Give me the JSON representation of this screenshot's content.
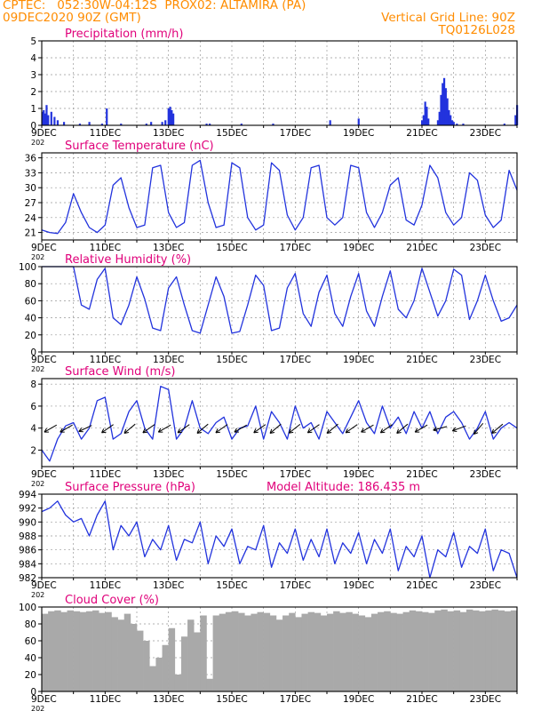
{
  "header": {
    "line1_left": "CPTEC:   052:30W-04:12S  PROX02: ALTAMIRA (PA)",
    "line2_left": "09DEC2020 90Z (GMT)",
    "line2_right": "Vertical Grid Line: 90Z",
    "line3_right": "TQ0126L028"
  },
  "colors": {
    "header": "#ff8c00",
    "title": "#e0007a",
    "line": "#2233dd",
    "bars": "#2233dd",
    "cloud": "#a9a9a9",
    "arrows": "#000000",
    "grid": "#999999"
  },
  "x_axis": {
    "days": [
      9,
      10,
      11,
      12,
      13,
      14,
      15,
      16,
      17,
      18,
      19,
      20,
      21,
      22,
      23,
      24
    ],
    "tick_labels": [
      "9DEC",
      "11DEC",
      "13DEC",
      "15DEC",
      "17DEC",
      "19DEC",
      "21DEC",
      "23DEC"
    ],
    "tick_days": [
      9,
      11,
      13,
      15,
      17,
      19,
      21,
      23
    ],
    "stub_label": "202"
  },
  "chart_data": [
    {
      "id": "precip",
      "type": "bar",
      "title": "Precipitation (mm/h)",
      "ylim": [
        0,
        5
      ],
      "yticks": [
        0,
        1,
        2,
        3,
        4,
        5
      ],
      "x": [
        9.02,
        9.06,
        9.1,
        9.15,
        9.2,
        9.3,
        9.4,
        9.5,
        9.7,
        10.2,
        10.5,
        10.9,
        11.05,
        11.5,
        12.3,
        12.45,
        12.8,
        12.9,
        13.0,
        13.05,
        13.1,
        13.15,
        14.2,
        14.3,
        15.3,
        16.3,
        18.1,
        19.0,
        21.0,
        21.05,
        21.1,
        21.15,
        21.2,
        21.5,
        21.55,
        21.6,
        21.65,
        21.7,
        21.75,
        21.8,
        21.85,
        21.9,
        21.95,
        22.0,
        22.1,
        22.3,
        23.6,
        23.95,
        24.0
      ],
      "values": [
        0.8,
        0.9,
        0.7,
        1.2,
        0.6,
        0.8,
        0.5,
        0.3,
        0.2,
        0.1,
        0.2,
        0.1,
        1.0,
        0.1,
        0.1,
        0.2,
        0.2,
        0.3,
        1.0,
        1.1,
        0.9,
        0.7,
        0.1,
        0.1,
        0.1,
        0.1,
        0.3,
        0.4,
        0.3,
        0.6,
        1.4,
        1.1,
        0.4,
        0.3,
        0.8,
        1.8,
        2.5,
        2.8,
        2.2,
        1.6,
        0.9,
        0.6,
        0.3,
        0.2,
        0.1,
        0.1,
        0.1,
        0.6,
        1.2
      ]
    },
    {
      "id": "temp",
      "type": "line",
      "title": "Surface Temperature (nC)",
      "ylim": [
        19.5,
        37
      ],
      "yticks": [
        21,
        24,
        27,
        30,
        33,
        36
      ],
      "x": [
        9.0,
        9.25,
        9.5,
        9.75,
        10.0,
        10.25,
        10.5,
        10.75,
        11.0,
        11.25,
        11.5,
        11.75,
        12.0,
        12.25,
        12.5,
        12.75,
        13.0,
        13.25,
        13.5,
        13.75,
        14.0,
        14.25,
        14.5,
        14.75,
        15.0,
        15.25,
        15.5,
        15.75,
        16.0,
        16.25,
        16.5,
        16.75,
        17.0,
        17.25,
        17.5,
        17.75,
        18.0,
        18.25,
        18.5,
        18.75,
        19.0,
        19.25,
        19.5,
        19.75,
        20.0,
        20.25,
        20.5,
        20.75,
        21.0,
        21.25,
        21.5,
        21.75,
        22.0,
        22.25,
        22.5,
        22.75,
        23.0,
        23.25,
        23.5,
        23.75,
        24.0
      ],
      "values": [
        21.5,
        21.0,
        20.8,
        23.0,
        28.8,
        25.0,
        22.0,
        21.0,
        22.5,
        30.5,
        32.0,
        26.0,
        22.0,
        22.5,
        34.0,
        34.5,
        25.0,
        22.0,
        23.0,
        34.5,
        35.5,
        27.0,
        22.0,
        22.5,
        35.0,
        34.0,
        24.0,
        21.5,
        22.5,
        35.0,
        33.5,
        24.5,
        21.5,
        24.0,
        34.0,
        34.5,
        24.0,
        22.5,
        24.0,
        34.5,
        34.0,
        25.0,
        22.0,
        25.0,
        30.5,
        32.0,
        23.5,
        22.5,
        26.5,
        34.5,
        32.0,
        25.0,
        22.5,
        24.0,
        33.0,
        31.5,
        24.5,
        22.0,
        23.5,
        33.5,
        29.5
      ]
    },
    {
      "id": "rh",
      "type": "line",
      "title": "Relative Humidity (%)",
      "ylim": [
        0,
        100
      ],
      "yticks": [
        0,
        20,
        40,
        60,
        80,
        100
      ],
      "x": [
        9.0,
        9.25,
        9.5,
        9.75,
        10.0,
        10.25,
        10.5,
        10.75,
        11.0,
        11.25,
        11.5,
        11.75,
        12.0,
        12.25,
        12.5,
        12.75,
        13.0,
        13.25,
        13.5,
        13.75,
        14.0,
        14.25,
        14.5,
        14.75,
        15.0,
        15.25,
        15.5,
        15.75,
        16.0,
        16.25,
        16.5,
        16.75,
        17.0,
        17.25,
        17.5,
        17.75,
        18.0,
        18.25,
        18.5,
        18.75,
        19.0,
        19.25,
        19.5,
        19.75,
        20.0,
        20.25,
        20.5,
        20.75,
        21.0,
        21.25,
        21.5,
        21.75,
        22.0,
        22.25,
        22.5,
        22.75,
        23.0,
        23.25,
        23.5,
        23.75,
        24.0
      ],
      "values": [
        100,
        100,
        100,
        100,
        100,
        55,
        50,
        85,
        98,
        40,
        32,
        55,
        88,
        62,
        28,
        25,
        75,
        88,
        55,
        25,
        22,
        55,
        88,
        65,
        22,
        24,
        55,
        90,
        78,
        25,
        28,
        75,
        92,
        45,
        30,
        70,
        90,
        45,
        30,
        65,
        92,
        48,
        30,
        65,
        95,
        50,
        40,
        60,
        98,
        70,
        42,
        60,
        97,
        90,
        38,
        60,
        90,
        60,
        36,
        40,
        55
      ]
    },
    {
      "id": "wind",
      "type": "line",
      "title": "Surface Wind (m/s)",
      "ylim": [
        0.5,
        8.5
      ],
      "yticks": [
        2,
        4,
        6,
        8
      ],
      "x": [
        9.0,
        9.25,
        9.5,
        9.75,
        10.0,
        10.25,
        10.5,
        10.75,
        11.0,
        11.25,
        11.5,
        11.75,
        12.0,
        12.25,
        12.5,
        12.75,
        13.0,
        13.25,
        13.5,
        13.75,
        14.0,
        14.25,
        14.5,
        14.75,
        15.0,
        15.25,
        15.5,
        15.75,
        16.0,
        16.25,
        16.5,
        16.75,
        17.0,
        17.25,
        17.5,
        17.75,
        18.0,
        18.25,
        18.5,
        18.75,
        19.0,
        19.25,
        19.5,
        19.75,
        20.0,
        20.25,
        20.5,
        20.75,
        21.0,
        21.25,
        21.5,
        21.75,
        22.0,
        22.25,
        22.5,
        22.75,
        23.0,
        23.25,
        23.5,
        23.75,
        24.0
      ],
      "values": [
        2.0,
        1.0,
        3.0,
        4.2,
        4.5,
        3.0,
        4.0,
        6.5,
        6.8,
        3.0,
        3.5,
        5.5,
        6.5,
        4.0,
        3.0,
        7.8,
        7.5,
        3.0,
        4.0,
        6.5,
        4.0,
        3.5,
        4.5,
        5.0,
        3.0,
        4.0,
        4.2,
        6.0,
        3.0,
        5.5,
        4.5,
        3.0,
        6.0,
        4.0,
        4.5,
        3.0,
        5.5,
        4.5,
        3.5,
        5.0,
        6.5,
        4.5,
        3.5,
        6.0,
        4.0,
        5.0,
        3.5,
        5.5,
        4.0,
        5.5,
        3.5,
        5.0,
        5.5,
        4.5,
        3.0,
        4.0,
        5.5,
        3.0,
        4.0,
        4.5,
        4.0
      ],
      "arrow_days": [
        9.3,
        9.8,
        10.4,
        11.1,
        11.8,
        12.4,
        12.9,
        13.5,
        14.1,
        14.7,
        15.3,
        15.9,
        16.4,
        17.0,
        17.6,
        18.2,
        18.8,
        19.3,
        19.9,
        20.4,
        21.0,
        21.6,
        22.2,
        22.8,
        23.4
      ],
      "arrow_dirs_deg": [
        30,
        30,
        25,
        35,
        40,
        35,
        30,
        35,
        40,
        35,
        30,
        35,
        40,
        38,
        35,
        40,
        35,
        30,
        35,
        40,
        30,
        15,
        20,
        50,
        40
      ]
    },
    {
      "id": "pressure",
      "type": "line",
      "title": "Surface Pressure (hPa)",
      "subtitle": "Model Altitude: 186.435 m",
      "ylim": [
        982,
        994
      ],
      "yticks": [
        982,
        984,
        986,
        988,
        990,
        992,
        994
      ],
      "x": [
        9.0,
        9.25,
        9.5,
        9.75,
        10.0,
        10.25,
        10.5,
        10.75,
        11.0,
        11.25,
        11.5,
        11.75,
        12.0,
        12.25,
        12.5,
        12.75,
        13.0,
        13.25,
        13.5,
        13.75,
        14.0,
        14.25,
        14.5,
        14.75,
        15.0,
        15.25,
        15.5,
        15.75,
        16.0,
        16.25,
        16.5,
        16.75,
        17.0,
        17.25,
        17.5,
        17.75,
        18.0,
        18.25,
        18.5,
        18.75,
        19.0,
        19.25,
        19.5,
        19.75,
        20.0,
        20.25,
        20.5,
        20.75,
        21.0,
        21.25,
        21.5,
        21.75,
        22.0,
        22.25,
        22.5,
        22.75,
        23.0,
        23.25,
        23.5,
        23.75,
        24.0
      ],
      "values": [
        991.5,
        992.0,
        993.0,
        991.0,
        990.0,
        990.5,
        988.0,
        991.0,
        993.0,
        986.0,
        989.5,
        988.0,
        990.0,
        985.0,
        987.5,
        986.0,
        989.5,
        984.5,
        987.5,
        987.0,
        990.0,
        984.0,
        988.0,
        986.5,
        989.0,
        984.0,
        986.5,
        986.0,
        989.5,
        983.5,
        987.0,
        985.5,
        989.0,
        984.5,
        987.5,
        985.0,
        989.0,
        984.0,
        987.0,
        985.5,
        988.5,
        984.0,
        987.5,
        985.5,
        989.0,
        983.0,
        986.5,
        985.0,
        988.0,
        982.0,
        986.0,
        985.0,
        988.5,
        983.5,
        986.5,
        985.5,
        989.0,
        983.0,
        986.0,
        985.5,
        982.0
      ]
    },
    {
      "id": "cloud",
      "type": "area",
      "title": "Cloud Cover (%)",
      "ylim": [
        0,
        100
      ],
      "yticks": [
        0,
        20,
        40,
        60,
        80,
        100
      ],
      "x": [
        9.0,
        9.2,
        9.4,
        9.6,
        9.8,
        10.0,
        10.2,
        10.4,
        10.6,
        10.8,
        11.0,
        11.2,
        11.4,
        11.6,
        11.8,
        12.0,
        12.2,
        12.4,
        12.6,
        12.8,
        13.0,
        13.2,
        13.4,
        13.6,
        13.8,
        14.0,
        14.2,
        14.4,
        14.6,
        14.8,
        15.0,
        15.2,
        15.4,
        15.6,
        15.8,
        16.0,
        16.2,
        16.4,
        16.6,
        16.8,
        17.0,
        17.2,
        17.4,
        17.6,
        17.8,
        18.0,
        18.2,
        18.4,
        18.6,
        18.8,
        19.0,
        19.2,
        19.4,
        19.6,
        19.8,
        20.0,
        20.2,
        20.4,
        20.6,
        20.8,
        21.0,
        21.2,
        21.4,
        21.6,
        21.8,
        22.0,
        22.2,
        22.4,
        22.6,
        22.8,
        23.0,
        23.2,
        23.4,
        23.6,
        23.8,
        24.0
      ],
      "values": [
        92,
        95,
        96,
        94,
        96,
        95,
        94,
        95,
        96,
        93,
        94,
        88,
        85,
        92,
        80,
        72,
        60,
        30,
        40,
        55,
        75,
        20,
        65,
        85,
        70,
        90,
        15,
        90,
        92,
        94,
        95,
        93,
        90,
        92,
        94,
        93,
        90,
        85,
        90,
        93,
        88,
        92,
        94,
        93,
        90,
        92,
        95,
        93,
        94,
        92,
        90,
        88,
        92,
        94,
        95,
        93,
        92,
        94,
        96,
        95,
        94,
        93,
        96,
        97,
        95,
        96,
        94,
        97,
        96,
        95,
        96,
        97,
        96,
        95,
        96,
        97
      ]
    }
  ]
}
